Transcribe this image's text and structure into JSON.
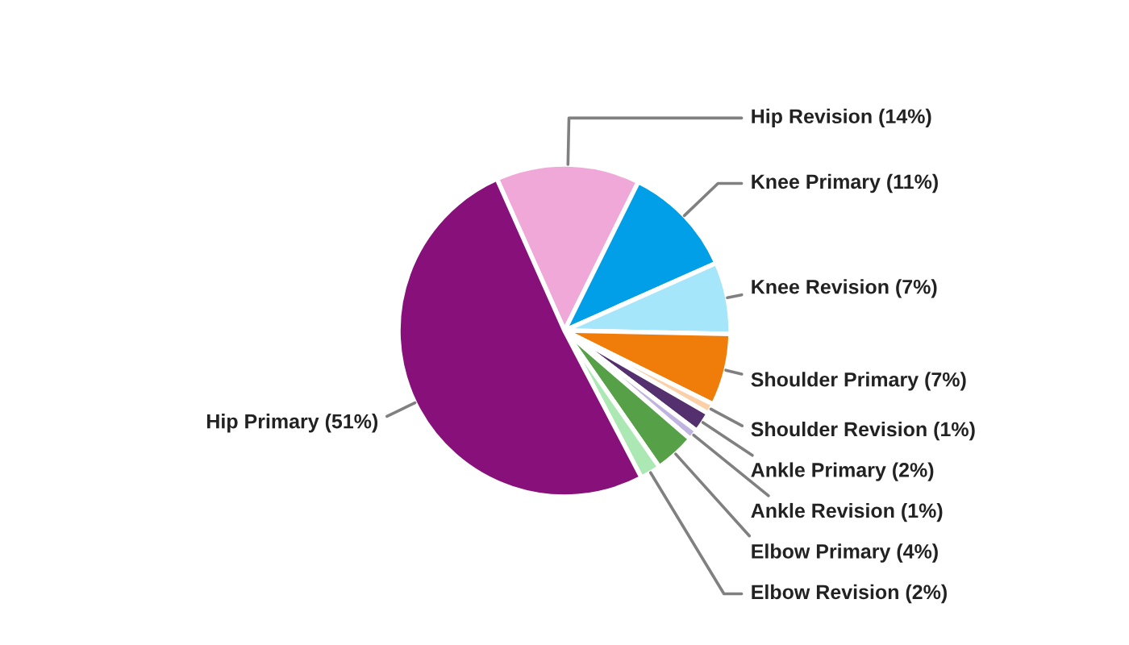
{
  "chart_data": {
    "type": "pie",
    "categories": [
      "Hip Revision",
      "Knee Primary",
      "Knee Revision",
      "Shoulder Primary",
      "Shoulder Revision",
      "Ankle Primary",
      "Ankle Revision",
      "Elbow Primary",
      "Elbow Revision",
      "Hip Primary"
    ],
    "values": [
      14,
      11,
      7,
      7,
      1,
      2,
      1,
      4,
      2,
      51
    ],
    "colors": [
      "#f0a8d8",
      "#009fe8",
      "#a6e6fb",
      "#f07d0a",
      "#fbd0a8",
      "#55306e",
      "#c0b4e0",
      "#56a048",
      "#ace8b4",
      "#87107a"
    ],
    "value_labels": [
      "(14%)",
      "(11%)",
      "(7%)",
      "(7%)",
      "(1%)",
      "(2%)",
      "(1%)",
      "(4%)",
      "(2%)",
      "(51%)"
    ]
  }
}
